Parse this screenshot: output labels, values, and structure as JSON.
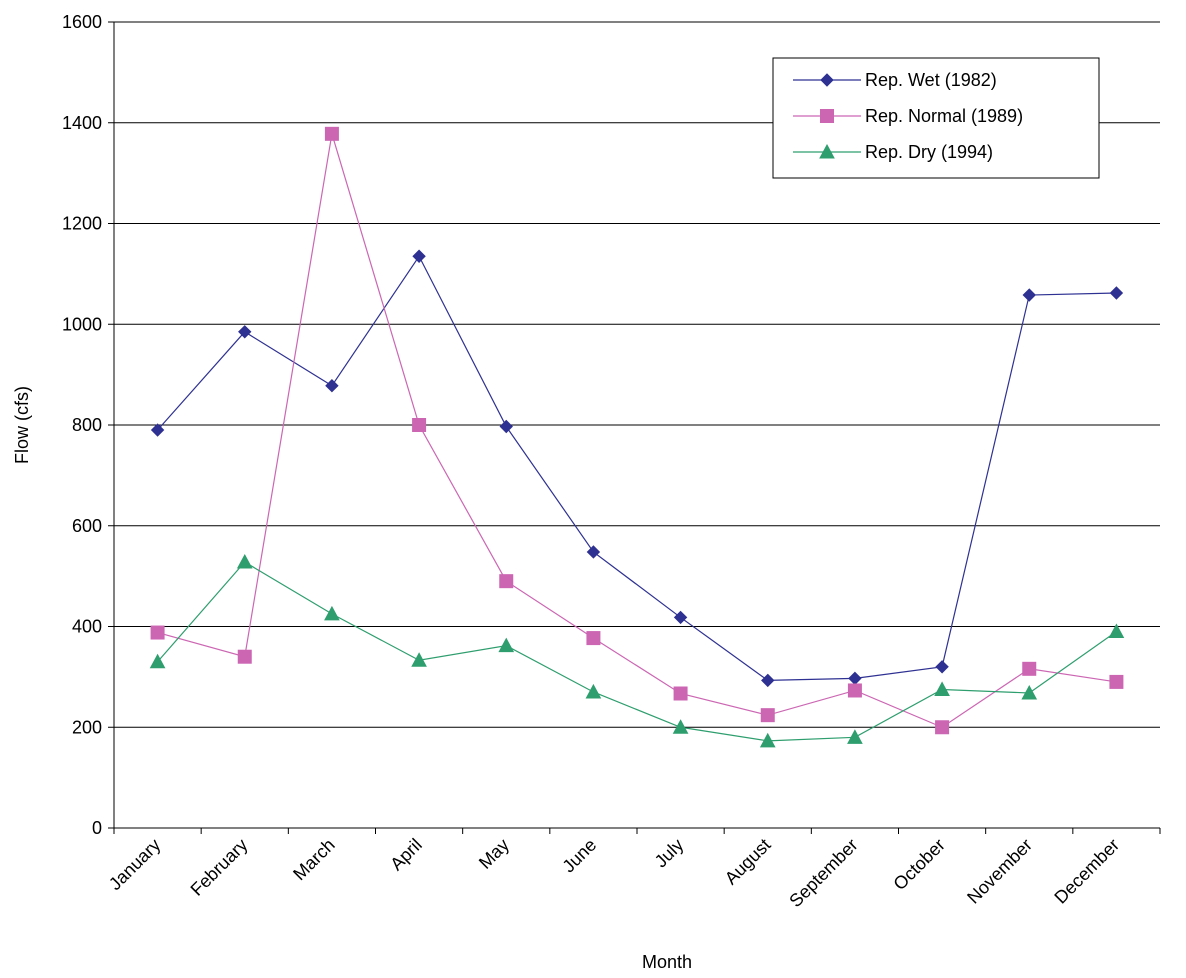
{
  "chart_data": {
    "type": "line",
    "title": "",
    "xlabel": "Month",
    "ylabel": "Flow (cfs)",
    "ylim": [
      0,
      1600
    ],
    "yticks": [
      0,
      200,
      400,
      600,
      800,
      1000,
      1200,
      1400,
      1600
    ],
    "ytick_labels": [
      "0",
      "200",
      "400",
      "600",
      "800",
      "1000",
      "1200",
      "1400",
      "1600"
    ],
    "grid": true,
    "legend_position": "top-right",
    "categories": [
      "January",
      "February",
      "March",
      "April",
      "May",
      "June",
      "July",
      "August",
      "September",
      "October",
      "November",
      "December"
    ],
    "series": [
      {
        "name": "Rep. Wet (1982)",
        "color": "#2E3192",
        "marker": "diamond",
        "values": [
          790,
          985,
          878,
          1135,
          797,
          548,
          418,
          293,
          297,
          320,
          1058,
          1062
        ]
      },
      {
        "name": "Rep. Normal (1989)",
        "color": "#CC66B3",
        "marker": "square",
        "values": [
          388,
          340,
          1378,
          800,
          490,
          377,
          267,
          224,
          273,
          200,
          316,
          290
        ]
      },
      {
        "name": "Rep. Dry (1994)",
        "color": "#2E9E6E",
        "marker": "triangle",
        "values": [
          330,
          528,
          425,
          333,
          362,
          270,
          200,
          173,
          180,
          275,
          268,
          390
        ]
      }
    ]
  }
}
